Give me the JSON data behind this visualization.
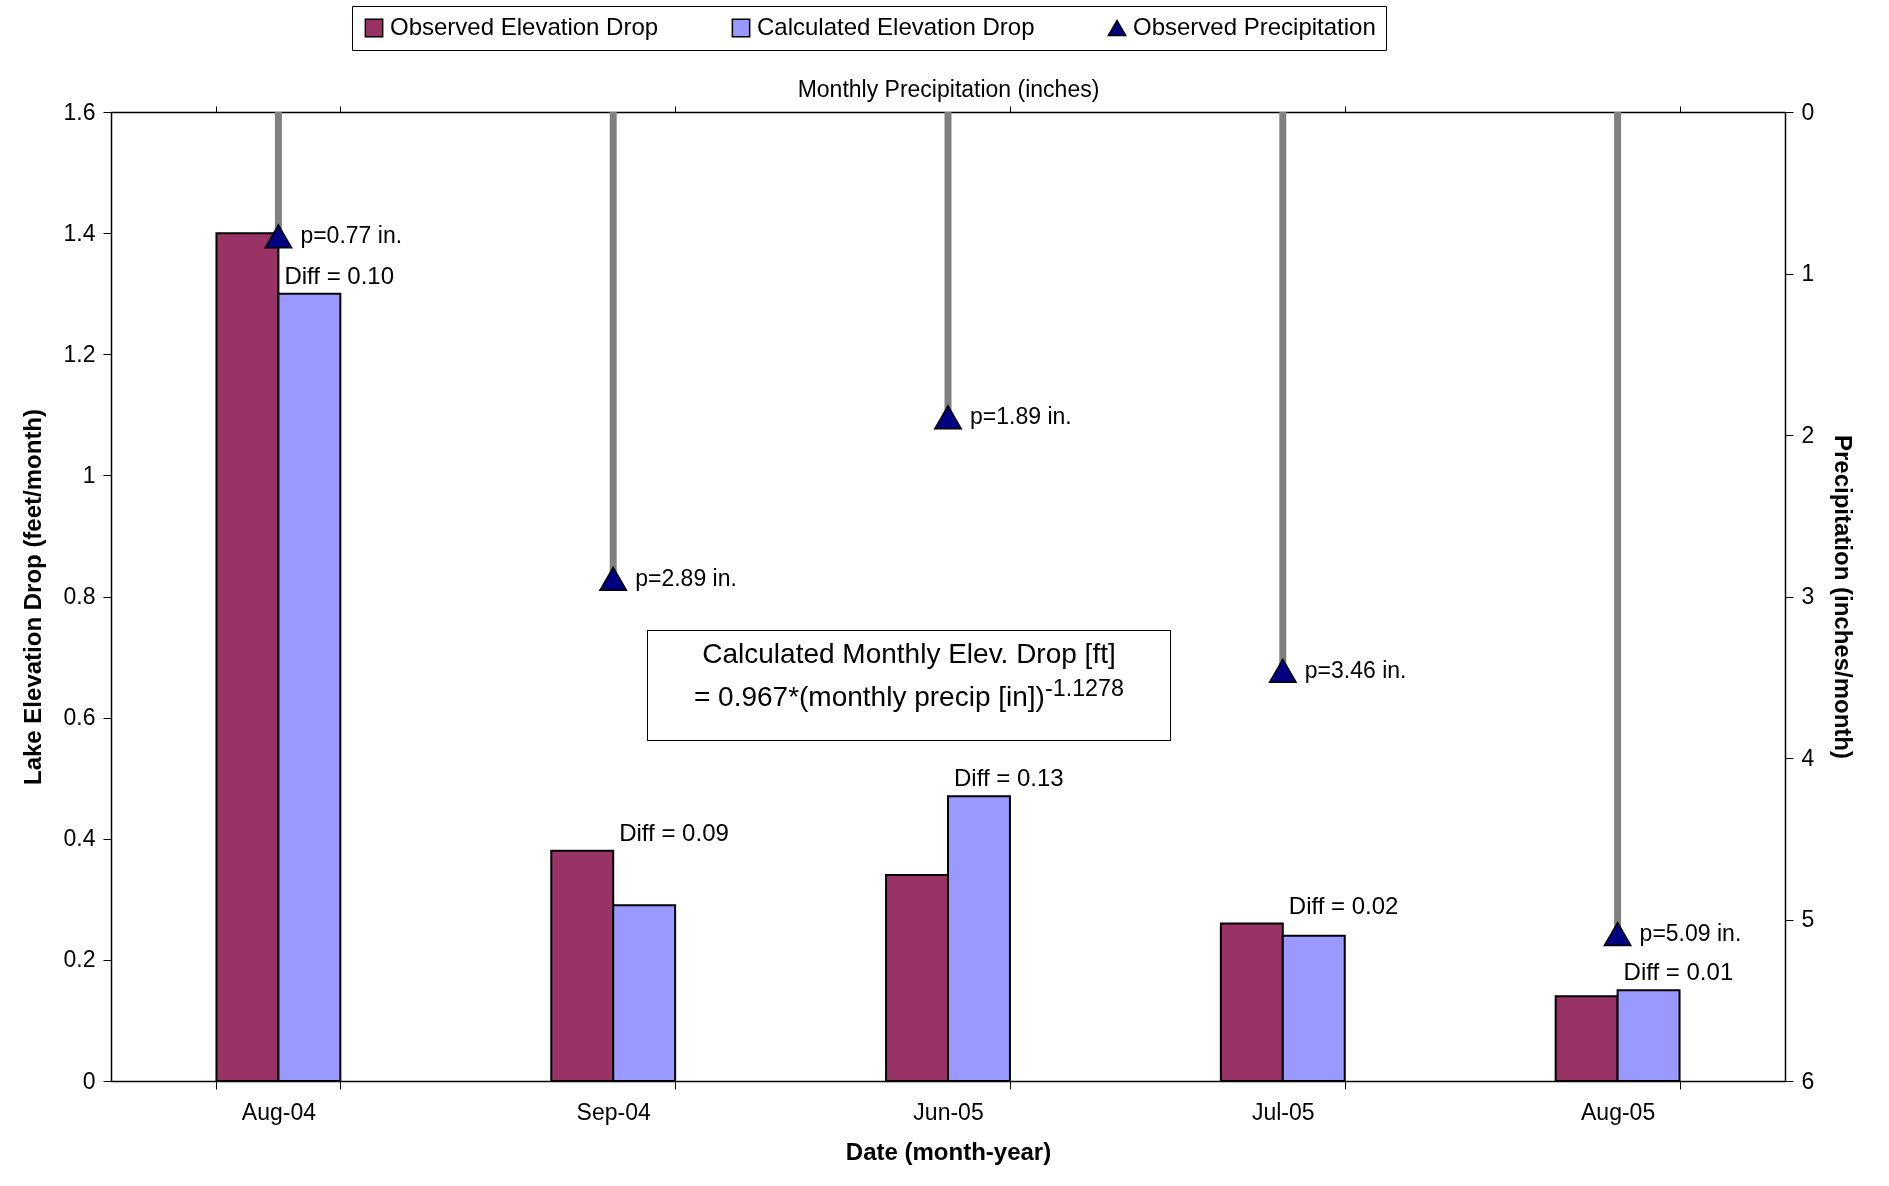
{
  "chart_data": {
    "type": "bar",
    "x2label": "Monthly Precipitation (inches)",
    "xlabel": "Date (month-year)",
    "ylabel": "Lake Elevation Drop (feet/month)",
    "y2label": "Precipitation (inches/month)",
    "categories": [
      "Aug-04",
      "Sep-04",
      "Jun-05",
      "Jul-05",
      "Aug-05"
    ],
    "series": [
      {
        "name": "Observed Elevation Drop",
        "color": "#993366",
        "values": [
          1.4,
          0.38,
          0.34,
          0.26,
          0.14
        ]
      },
      {
        "name": "Calculated Elevation Drop",
        "color": "#9999ff",
        "values": [
          1.3,
          0.29,
          0.47,
          0.24,
          0.15
        ]
      },
      {
        "name": "Observed Precipitation",
        "type": "lollipop",
        "axis": "y2",
        "color": "#000080",
        "values": [
          0.77,
          2.89,
          1.89,
          3.46,
          5.09
        ],
        "value_labels": [
          "p=0.77 in.",
          "p=2.89 in.",
          "p=1.89 in.",
          "p=3.46 in.",
          "p=5.09 in."
        ]
      }
    ],
    "marker": "triangle",
    "legend": "top",
    "ylim": [
      0,
      1.6
    ],
    "yticks": [
      0,
      0.2,
      0.4,
      0.6,
      0.8,
      1,
      1.2,
      1.4,
      1.6
    ],
    "y2lim": [
      6,
      0
    ],
    "y2ticks": [
      0,
      1,
      2,
      3,
      4,
      5,
      6
    ],
    "annotations": [
      {
        "text": "Diff = 0.10",
        "x": "Aug-04",
        "y": 1.3
      },
      {
        "text": "Diff = 0.09",
        "x": "Sep-04",
        "y": 0.38
      },
      {
        "text": "Diff = 0.13",
        "x": "Jun-05",
        "y": 0.47
      },
      {
        "text": "Diff = 0.02",
        "x": "Jul-05",
        "y": 0.26
      },
      {
        "text": "Diff = 0.01",
        "x": "Aug-05",
        "y": 0.15
      },
      "Calculated Monthly Elev. Drop [ft]\n= 0.967*(monthly precip [in])$^{-1.1278}$"
    ]
  }
}
